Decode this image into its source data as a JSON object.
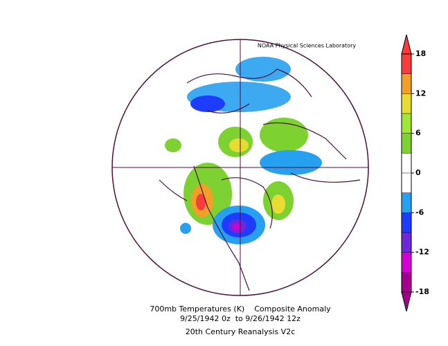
{
  "header": {
    "lab": "NOAA Physical Sciences Laboratory"
  },
  "footer": {
    "line1": "700mb Temperatures (K)    Composite Anomaly",
    "line2": "9/25/1942 0z  to 9/26/1942 12z",
    "line3": "20th Century Reanalysis V2c"
  },
  "colorbar": {
    "lim": [
      -18,
      18
    ],
    "ticks": [
      -18,
      -12,
      -6,
      0,
      6,
      12,
      18
    ],
    "levels": [
      -18,
      -15,
      -12,
      -9,
      -6,
      -3,
      0,
      3,
      6,
      9,
      12,
      15,
      18
    ],
    "colors": [
      "#a0008c",
      "#d200d2",
      "#6e28dc",
      "#1e3cff",
      "#28a0f0",
      "#ffffff",
      "#ffffff",
      "#7dd232",
      "#a0e632",
      "#e6dc32",
      "#f0a028",
      "#fa3c3c"
    ]
  }
}
